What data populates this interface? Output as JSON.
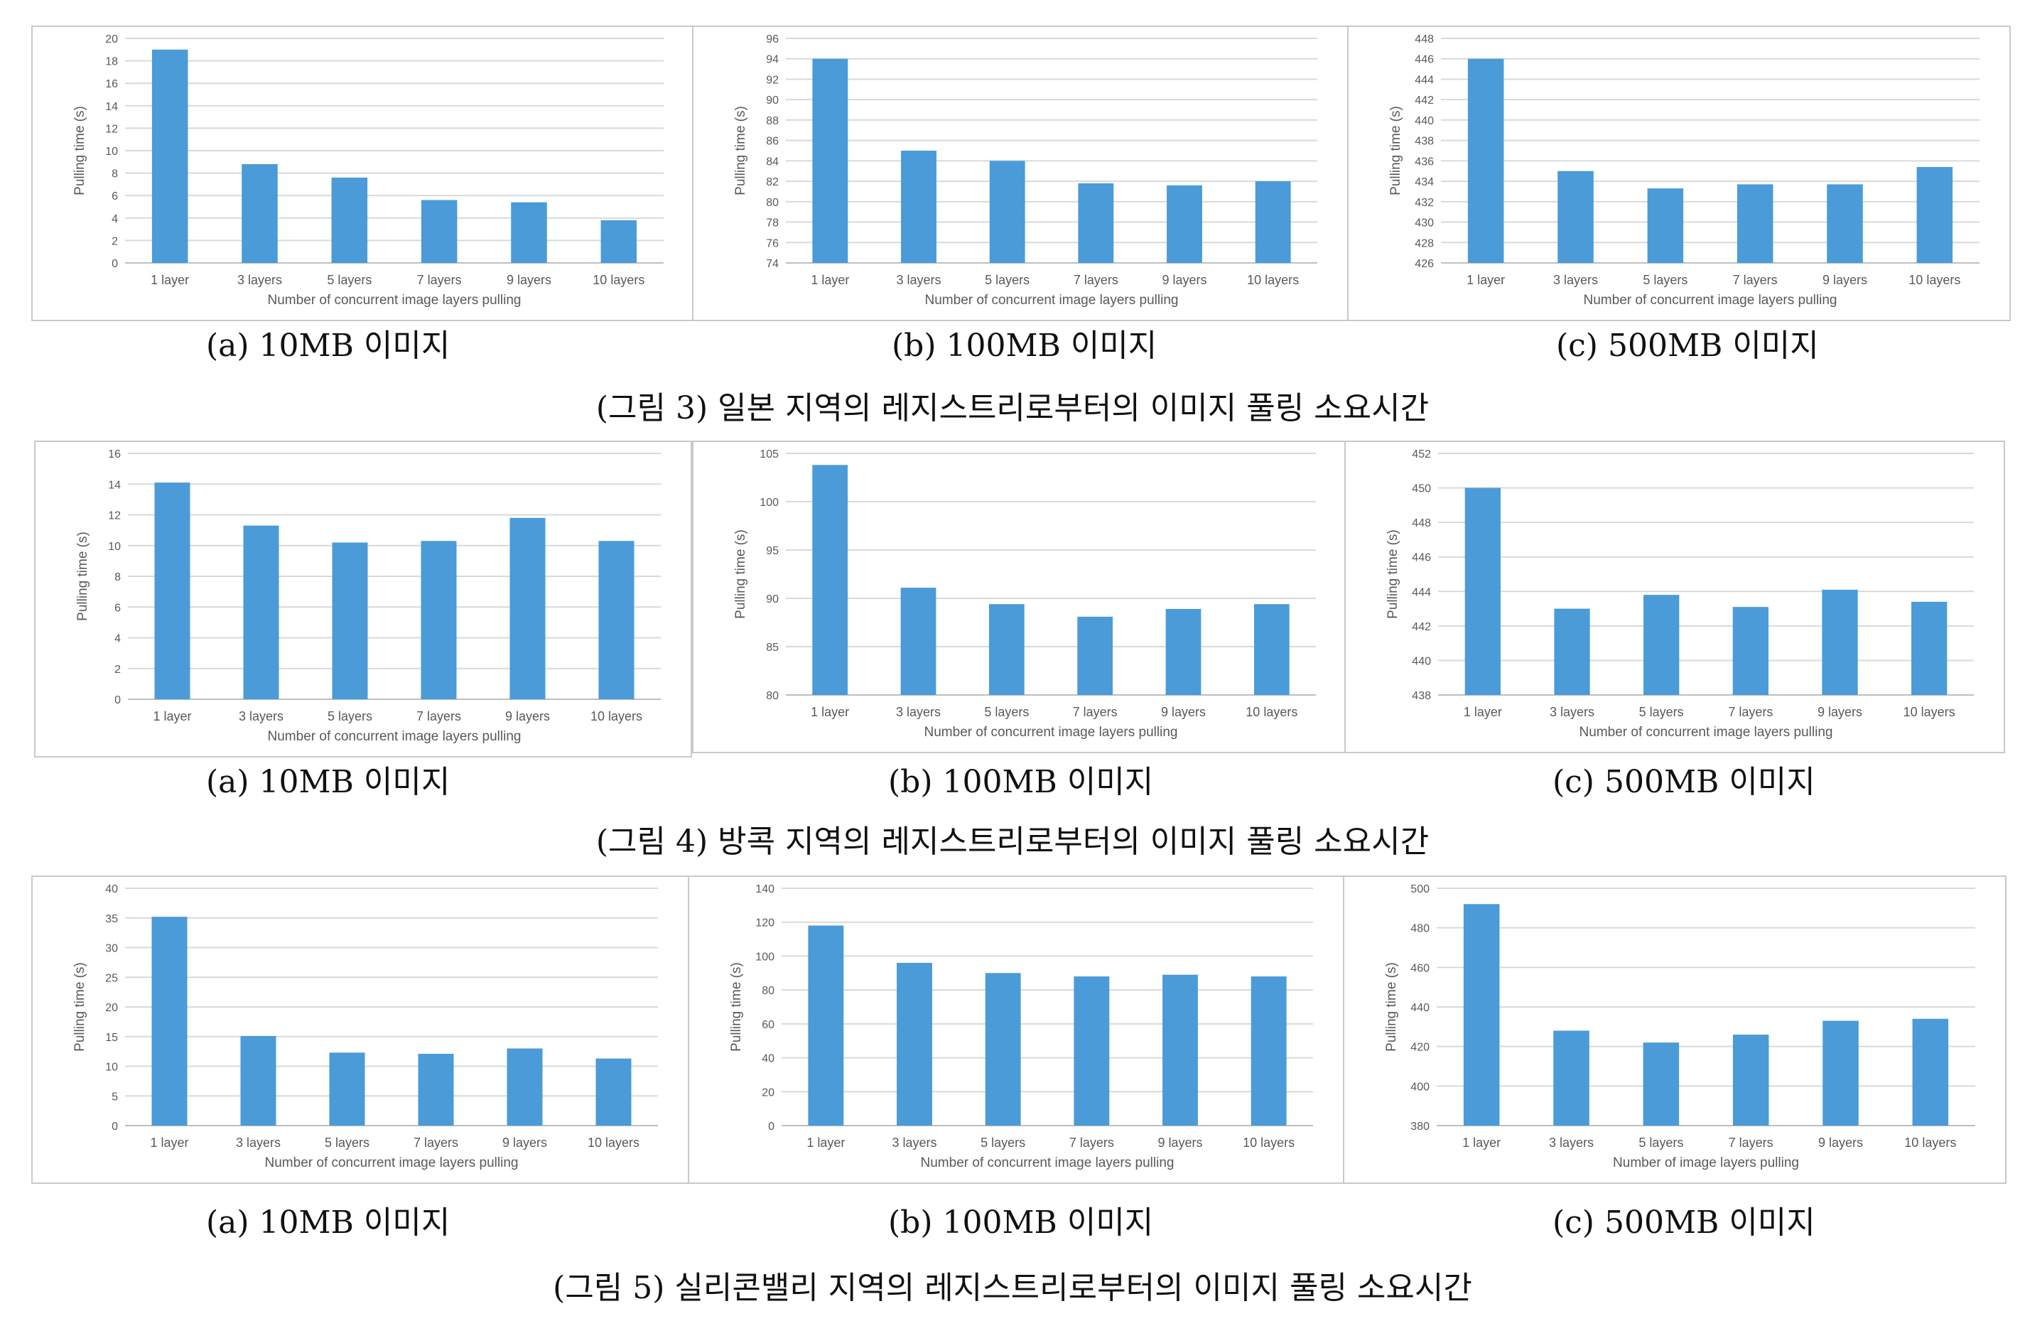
{
  "figures": [
    {
      "caption": "(그림 3) 일본 지역의 레지스트리로부터의 이미지 풀링 소요시간",
      "subcaptions": [
        "(a) 10MB 이미지",
        "(b) 100MB 이미지",
        "(c) 500MB 이미지"
      ]
    },
    {
      "caption": "(그림 4) 방콕 지역의 레지스트리로부터의 이미지 풀링 소요시간",
      "subcaptions": [
        "(a) 10MB 이미지",
        "(b) 100MB 이미지",
        "(c) 500MB 이미지"
      ]
    },
    {
      "caption": "(그림 5) 실리콘밸리 지역의 레지스트리로부터의 이미지 풀링 소요시간",
      "subcaptions": [
        "(a) 10MB 이미지",
        "(b) 100MB 이미지",
        "(c) 500MB 이미지"
      ]
    }
  ],
  "colors": {
    "bar": "#4a9bd8",
    "grid": "#d9d9d9",
    "axis_text": "#595959"
  },
  "chart_data": [
    {
      "type": "bar",
      "categories": [
        "1 layer",
        "3 layers",
        "5 layers",
        "7 layers",
        "9 layers",
        "10 layers"
      ],
      "values": [
        19,
        8.8,
        7.6,
        5.6,
        5.4,
        3.8
      ],
      "ylim": [
        0,
        20
      ],
      "ytick_step": 2,
      "xlabel": "Number of concurrent image layers pulling",
      "ylabel": "Pulling time (s)",
      "grid": true
    },
    {
      "type": "bar",
      "categories": [
        "1 layer",
        "3 layers",
        "5 layers",
        "7 layers",
        "9 layers",
        "10 layers"
      ],
      "values": [
        94,
        85,
        84,
        81.8,
        81.6,
        82
      ],
      "ylim": [
        74,
        96
      ],
      "ytick_step": 2,
      "xlabel": "Number of concurrent image layers pulling",
      "ylabel": "Pulling time (s)",
      "grid": true
    },
    {
      "type": "bar",
      "categories": [
        "1 layer",
        "3 layers",
        "5 layers",
        "7 layers",
        "9 layers",
        "10 layers"
      ],
      "values": [
        446,
        435,
        433.3,
        433.7,
        433.7,
        435.4
      ],
      "ylim": [
        426,
        448
      ],
      "ytick_step": 2,
      "xlabel": "Number of concurrent image layers pulling",
      "ylabel": "Pulling time (s)",
      "grid": true
    },
    {
      "type": "bar",
      "categories": [
        "1 layer",
        "3 layers",
        "5 layers",
        "7 layers",
        "9 layers",
        "10 layers"
      ],
      "values": [
        14.1,
        11.3,
        10.2,
        10.3,
        11.8,
        10.3
      ],
      "ylim": [
        0,
        16
      ],
      "ytick_step": 2,
      "xlabel": "Number of concurrent image layers pulling",
      "ylabel": "Pulling time (s)",
      "grid": true
    },
    {
      "type": "bar",
      "categories": [
        "1 layer",
        "3 layers",
        "5 layers",
        "7 layers",
        "9 layers",
        "10 layers"
      ],
      "values": [
        103.8,
        91.1,
        89.4,
        88.1,
        88.9,
        89.4
      ],
      "ylim": [
        80,
        105
      ],
      "ytick_step": 5,
      "xlabel": "Number of concurrent image layers pulling",
      "ylabel": "Pulling time (s)",
      "grid": true
    },
    {
      "type": "bar",
      "categories": [
        "1 layer",
        "3 layers",
        "5 layers",
        "7 layers",
        "9 layers",
        "10 layers"
      ],
      "values": [
        450,
        443,
        443.8,
        443.1,
        444.1,
        443.4
      ],
      "ylim": [
        438,
        452
      ],
      "ytick_step": 2,
      "xlabel": "Number of concurrent image layers pulling",
      "ylabel": "Pulling time (s)",
      "grid": true
    },
    {
      "type": "bar",
      "categories": [
        "1 layer",
        "3 layers",
        "5 layers",
        "7 layers",
        "9 layers",
        "10 layers"
      ],
      "values": [
        35.2,
        15.1,
        12.3,
        12.1,
        13,
        11.3
      ],
      "ylim": [
        0,
        40
      ],
      "ytick_step": 5,
      "xlabel": "Number of concurrent image layers pulling",
      "ylabel": "Pulling time (s)",
      "grid": true
    },
    {
      "type": "bar",
      "categories": [
        "1 layer",
        "3 layers",
        "5 layers",
        "7 layers",
        "9 layers",
        "10 layers"
      ],
      "values": [
        118,
        96,
        90,
        88,
        89,
        88
      ],
      "ylim": [
        0,
        140
      ],
      "ytick_step": 20,
      "xlabel": "Number of concurrent image layers pulling",
      "ylabel": "Pulling time (s)",
      "grid": true
    },
    {
      "type": "bar",
      "categories": [
        "1 layer",
        "3 layers",
        "5 layers",
        "7 layers",
        "9 layers",
        "10 layers"
      ],
      "values": [
        492,
        428,
        422,
        426,
        433,
        434
      ],
      "ylim": [
        380,
        500
      ],
      "ytick_step": 20,
      "xlabel": "Number of image layers pulling",
      "ylabel": "Pulling time (s)",
      "grid": true
    }
  ]
}
